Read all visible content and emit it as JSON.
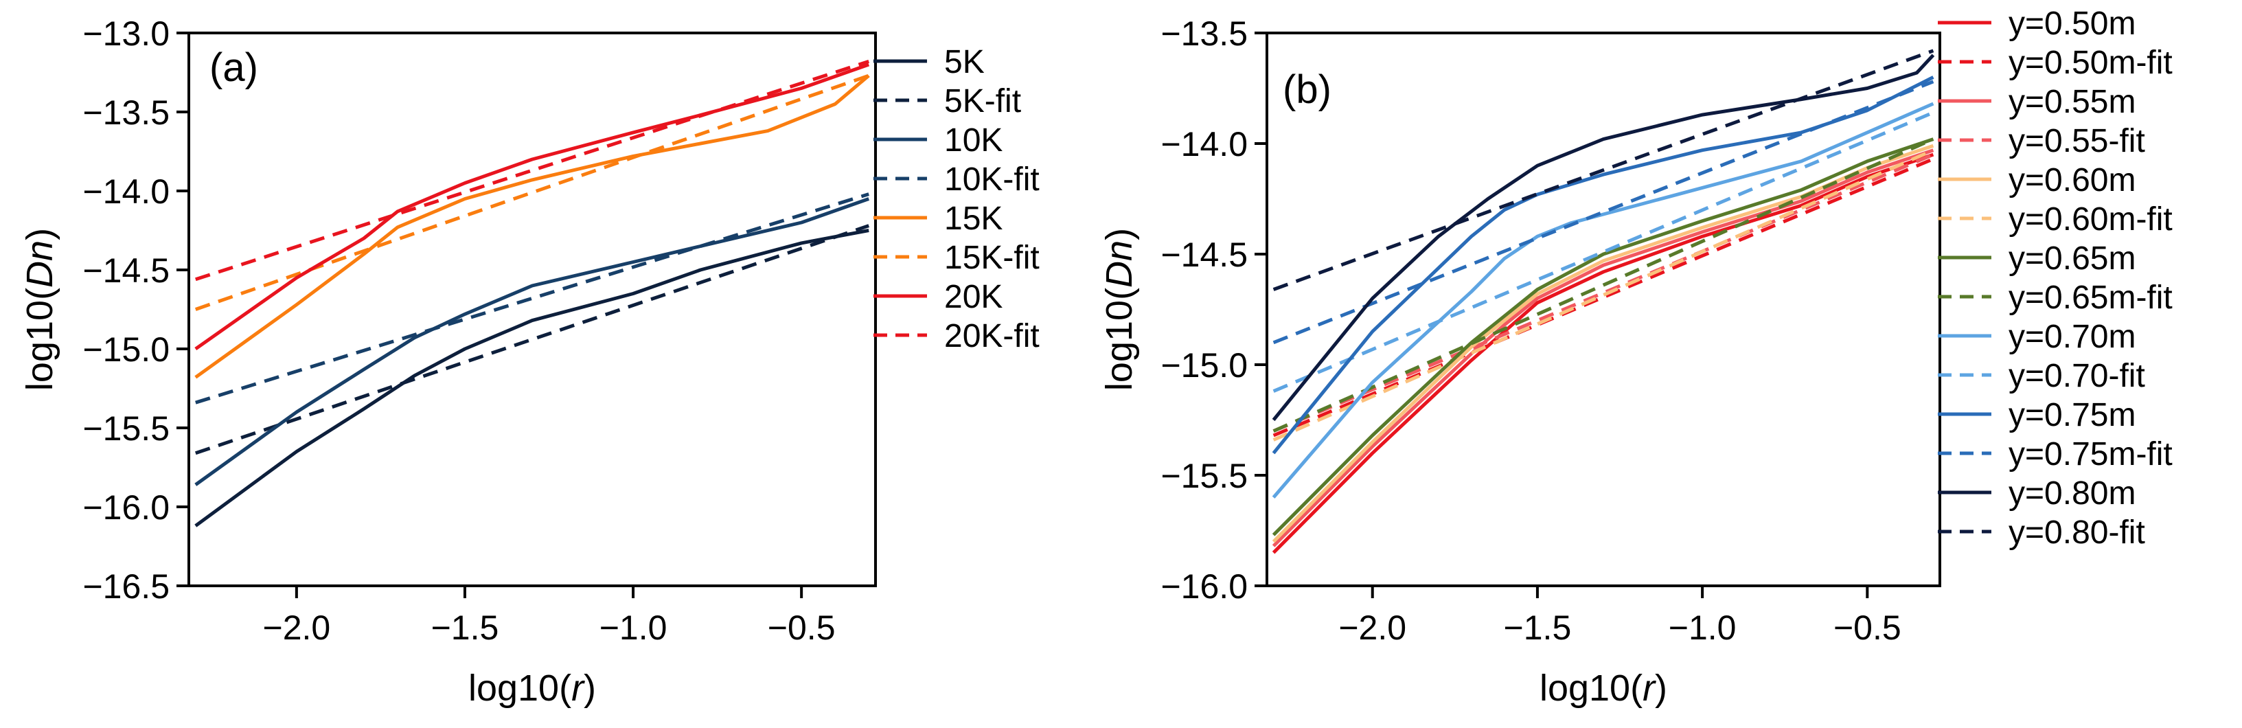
{
  "chart_data": [
    {
      "type": "line",
      "panel_label": "(a)",
      "xlabel_main": "log10(",
      "xlabel_var": "r",
      "xlabel_end": ")",
      "ylabel_main": "log10(",
      "ylabel_var": "Dn",
      "ylabel_end": ")",
      "xlim": [
        -2.32,
        -0.28
      ],
      "ylim": [
        -16.5,
        -13.0
      ],
      "xticks": [
        -2.0,
        -1.5,
        -1.0,
        -0.5
      ],
      "xtick_labels": [
        "−2.0",
        "−1.5",
        "−1.0",
        "−0.5"
      ],
      "yticks": [
        -13.0,
        -13.5,
        -14.0,
        -14.5,
        -15.0,
        -15.5,
        -16.0,
        -16.5
      ],
      "ytick_labels": [
        "−13.0",
        "−13.5",
        "−14.0",
        "−14.5",
        "−15.0",
        "−15.5",
        "−16.0",
        "−16.5"
      ],
      "legend_position": "right-outside",
      "series": [
        {
          "name": "5K",
          "color": "#0d1f3c",
          "dash": "solid",
          "x": [
            -2.3,
            -2.0,
            -1.8,
            -1.65,
            -1.5,
            -1.3,
            -1.0,
            -0.8,
            -0.5,
            -0.3
          ],
          "y": [
            -16.12,
            -15.65,
            -15.38,
            -15.17,
            -15.0,
            -14.82,
            -14.65,
            -14.5,
            -14.33,
            -14.25
          ]
        },
        {
          "name": "5K-fit",
          "color": "#0d1f3c",
          "dash": "dashed",
          "x": [
            -2.3,
            -0.3
          ],
          "y": [
            -15.66,
            -14.22
          ]
        },
        {
          "name": "10K",
          "color": "#173f68",
          "dash": "solid",
          "x": [
            -2.3,
            -2.0,
            -1.8,
            -1.65,
            -1.5,
            -1.3,
            -1.0,
            -0.8,
            -0.5,
            -0.3
          ],
          "y": [
            -15.86,
            -15.4,
            -15.13,
            -14.93,
            -14.78,
            -14.6,
            -14.45,
            -14.35,
            -14.2,
            -14.05
          ]
        },
        {
          "name": "10K-fit",
          "color": "#173f68",
          "dash": "dashed",
          "x": [
            -2.3,
            -0.3
          ],
          "y": [
            -15.34,
            -14.02
          ]
        },
        {
          "name": "15K",
          "color": "#fa7d0f",
          "dash": "solid",
          "x": [
            -2.3,
            -2.0,
            -1.8,
            -1.7,
            -1.5,
            -1.3,
            -1.0,
            -0.8,
            -0.6,
            -0.4,
            -0.3
          ],
          "y": [
            -15.18,
            -14.72,
            -14.4,
            -14.23,
            -14.05,
            -13.93,
            -13.78,
            -13.7,
            -13.62,
            -13.45,
            -13.27
          ]
        },
        {
          "name": "15K-fit",
          "color": "#fa7d0f",
          "dash": "dashed",
          "x": [
            -2.3,
            -0.3
          ],
          "y": [
            -14.75,
            -13.27
          ]
        },
        {
          "name": "20K",
          "color": "#e8141e",
          "dash": "solid",
          "x": [
            -2.3,
            -2.0,
            -1.8,
            -1.7,
            -1.5,
            -1.3,
            -1.0,
            -0.8,
            -0.5,
            -0.3
          ],
          "y": [
            -15.0,
            -14.55,
            -14.3,
            -14.13,
            -13.95,
            -13.8,
            -13.63,
            -13.52,
            -13.35,
            -13.2
          ]
        },
        {
          "name": "20K-fit",
          "color": "#e8141e",
          "dash": "dashed",
          "x": [
            -2.3,
            -0.3
          ],
          "y": [
            -14.56,
            -13.18
          ]
        }
      ]
    },
    {
      "type": "line",
      "panel_label": "(b)",
      "xlabel_main": "log10(",
      "xlabel_var": "r",
      "xlabel_end": ")",
      "ylabel_main": "log10(",
      "ylabel_var": "Dn",
      "ylabel_end": ")",
      "xlim": [
        -2.32,
        -0.28
      ],
      "ylim": [
        -16.0,
        -13.5
      ],
      "xticks": [
        -2.0,
        -1.5,
        -1.0,
        -0.5
      ],
      "xtick_labels": [
        "−2.0",
        "−1.5",
        "−1.0",
        "−0.5"
      ],
      "yticks": [
        -13.5,
        -14.0,
        -14.5,
        -15.0,
        -15.5,
        -16.0
      ],
      "ytick_labels": [
        "−13.5",
        "−14.0",
        "−14.5",
        "−15.0",
        "−15.5",
        "−16.0"
      ],
      "legend_position": "right-outside",
      "series": [
        {
          "name": "y=0.50m",
          "color": "#e8141e",
          "dash": "solid",
          "x": [
            -2.3,
            -2.0,
            -1.7,
            -1.6,
            -1.5,
            -1.3,
            -1.0,
            -0.7,
            -0.5,
            -0.3
          ],
          "y": [
            -15.85,
            -15.4,
            -14.98,
            -14.85,
            -14.72,
            -14.58,
            -14.42,
            -14.28,
            -14.15,
            -14.05
          ]
        },
        {
          "name": "y=0.50m-fit",
          "color": "#e8141e",
          "dash": "dashed",
          "x": [
            -2.3,
            -0.3
          ],
          "y": [
            -15.32,
            -14.07
          ]
        },
        {
          "name": "y=0.55m",
          "color": "#f2585f",
          "dash": "solid",
          "x": [
            -2.3,
            -2.0,
            -1.7,
            -1.6,
            -1.5,
            -1.3,
            -1.0,
            -0.7,
            -0.5,
            -0.3
          ],
          "y": [
            -15.82,
            -15.37,
            -14.95,
            -14.82,
            -14.7,
            -14.55,
            -14.4,
            -14.26,
            -14.13,
            -14.03
          ]
        },
        {
          "name": "y=0.55-fit",
          "color": "#f2585f",
          "dash": "dashed",
          "x": [
            -2.3,
            -0.3
          ],
          "y": [
            -15.3,
            -14.05
          ]
        },
        {
          "name": "y=0.60m",
          "color": "#fbc07c",
          "dash": "solid",
          "x": [
            -2.3,
            -2.0,
            -1.7,
            -1.6,
            -1.5,
            -1.3,
            -1.0,
            -0.7,
            -0.5,
            -0.3
          ],
          "y": [
            -15.8,
            -15.35,
            -14.92,
            -14.8,
            -14.68,
            -14.53,
            -14.38,
            -14.24,
            -14.11,
            -14.01
          ]
        },
        {
          "name": "y=0.60m-fit",
          "color": "#fbc07c",
          "dash": "dashed",
          "x": [
            -2.3,
            -0.3
          ],
          "y": [
            -15.34,
            -14.03
          ]
        },
        {
          "name": "y=0.65m",
          "color": "#587a2a",
          "dash": "solid",
          "x": [
            -2.3,
            -2.0,
            -1.7,
            -1.6,
            -1.5,
            -1.3,
            -1.0,
            -0.7,
            -0.5,
            -0.3
          ],
          "y": [
            -15.77,
            -15.32,
            -14.9,
            -14.78,
            -14.66,
            -14.5,
            -14.35,
            -14.21,
            -14.08,
            -13.98
          ]
        },
        {
          "name": "y=0.65m-fit",
          "color": "#587a2a",
          "dash": "dashed",
          "x": [
            -2.3,
            -0.3
          ],
          "y": [
            -15.3,
            -13.98
          ]
        },
        {
          "name": "y=0.70m",
          "color": "#5da4e2",
          "dash": "solid",
          "x": [
            -2.3,
            -2.0,
            -1.7,
            -1.6,
            -1.5,
            -1.4,
            -1.3,
            -1.0,
            -0.7,
            -0.5,
            -0.3
          ],
          "y": [
            -15.6,
            -15.08,
            -14.67,
            -14.52,
            -14.42,
            -14.36,
            -14.32,
            -14.2,
            -14.08,
            -13.95,
            -13.82
          ]
        },
        {
          "name": "y=0.70-fit",
          "color": "#5da4e2",
          "dash": "dashed",
          "x": [
            -2.3,
            -0.3
          ],
          "y": [
            -15.12,
            -13.86
          ]
        },
        {
          "name": "y=0.75m",
          "color": "#2a6cb8",
          "dash": "solid",
          "x": [
            -2.3,
            -2.0,
            -1.7,
            -1.6,
            -1.5,
            -1.3,
            -1.0,
            -0.7,
            -0.5,
            -0.3
          ],
          "y": [
            -15.4,
            -14.85,
            -14.42,
            -14.3,
            -14.23,
            -14.14,
            -14.03,
            -13.95,
            -13.85,
            -13.7
          ]
        },
        {
          "name": "y=0.75m-fit",
          "color": "#2a6cb8",
          "dash": "dashed",
          "x": [
            -2.3,
            -0.3
          ],
          "y": [
            -14.9,
            -13.72
          ]
        },
        {
          "name": "y=0.80m",
          "color": "#0d1a3e",
          "dash": "solid",
          "x": [
            -2.3,
            -2.0,
            -1.8,
            -1.65,
            -1.5,
            -1.3,
            -1.0,
            -0.7,
            -0.5,
            -0.35,
            -0.3
          ],
          "y": [
            -15.25,
            -14.7,
            -14.42,
            -14.25,
            -14.1,
            -13.98,
            -13.87,
            -13.8,
            -13.75,
            -13.68,
            -13.6
          ]
        },
        {
          "name": "y=0.80-fit",
          "color": "#0d1a3e",
          "dash": "dashed",
          "x": [
            -2.3,
            -0.3
          ],
          "y": [
            -14.66,
            -13.58
          ]
        }
      ]
    }
  ]
}
